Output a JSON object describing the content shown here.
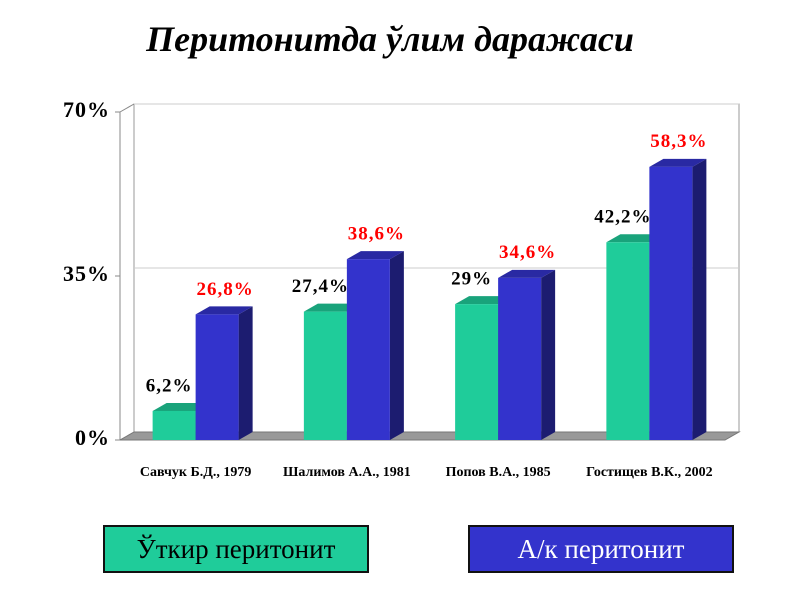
{
  "chart_data": {
    "type": "bar3d",
    "title": "Перитонитда ўлим даражаси",
    "categories": [
      "Савчук Б.Д., 1979",
      "Шалимов А.А., 1981",
      "Попов В.А., 1985",
      "Гостищев В.К., 2002"
    ],
    "series": [
      {
        "name": "Ўткир перитонит",
        "color": "#1fcc9a",
        "label_color": "#000000",
        "values": [
          6.2,
          27.4,
          29,
          42.2
        ],
        "value_labels": [
          "6,2%",
          "27,4%",
          "29%",
          "42,2%"
        ]
      },
      {
        "name": "А/к перитонит",
        "color": "#3333cc",
        "label_color": "#ff0000",
        "values": [
          26.8,
          38.6,
          34.6,
          58.3
        ],
        "value_labels": [
          "26,8%",
          "38,6%",
          "34,6%",
          "58,3%"
        ]
      }
    ],
    "ylim": [
      0,
      70
    ],
    "yticks": [
      {
        "value": 0,
        "label": "0%"
      },
      {
        "value": 35,
        "label": "35%"
      },
      {
        "value": 70,
        "label": "70%"
      }
    ],
    "grid": true
  }
}
